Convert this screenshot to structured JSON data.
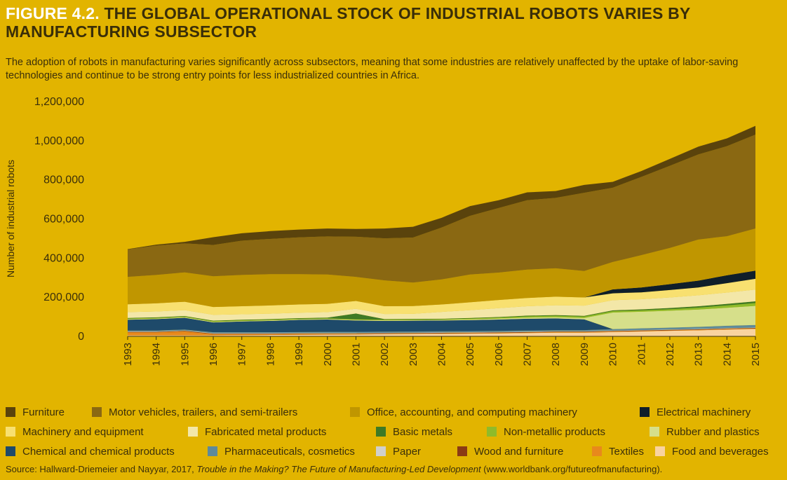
{
  "figure": {
    "number": "FIGURE 4.2.",
    "title": "THE GLOBAL OPERATIONAL STOCK OF INDUSTRIAL ROBOTS VARIES BY MANUFACTURING SUBSECTOR",
    "subtitle": "The adoption of robots in manufacturing varies significantly across subsectors, meaning that some industries are relatively unaffected by the uptake of labor-saving technologies and continue to be strong entry points for less industrialized countries in Africa."
  },
  "source": {
    "prefix": "Source: Hallward-Driemeier and Nayyar, 2017,",
    "title": "Trouble in the Making? The Future of Manufacturing-Led Development",
    "suffix": "(www.worldbank.org/futureofmanufacturing)."
  },
  "chart_data": {
    "type": "area",
    "stacked": true,
    "title": "THE GLOBAL OPERATIONAL STOCK OF INDUSTRIAL ROBOTS VARIES BY MANUFACTURING SUBSECTOR",
    "xlabel": "",
    "ylabel": "Number of industrial robots",
    "ylim": [
      0,
      1200000
    ],
    "yticks": [
      0,
      200000,
      400000,
      600000,
      800000,
      1000000,
      1200000
    ],
    "ytick_labels": [
      "0",
      "200,000",
      "400,000",
      "600,000",
      "800,000",
      "1,000,000",
      "1,200,000"
    ],
    "categories": [
      "1993",
      "1994",
      "1995",
      "1996",
      "1997",
      "1998",
      "1999",
      "2000",
      "2001",
      "2002",
      "2003",
      "2004",
      "2005",
      "2006",
      "2007",
      "2008",
      "2009",
      "2010",
      "2011",
      "2012",
      "2013",
      "2014",
      "2015"
    ],
    "series": [
      {
        "name": "Food and beverages",
        "color": "#f9d3a0",
        "values": [
          5000,
          5000,
          5000,
          5000,
          6000,
          7000,
          8000,
          9000,
          10000,
          11000,
          12000,
          13000,
          14000,
          15000,
          17000,
          19000,
          19000,
          22000,
          25000,
          28000,
          31000,
          35000,
          38000
        ]
      },
      {
        "name": "Textiles",
        "color": "#e8891c",
        "values": [
          15000,
          15000,
          20000,
          6000,
          5000,
          4000,
          4000,
          3000,
          2000,
          2000,
          2000,
          2000,
          2000,
          2000,
          2000,
          2000,
          2000,
          2000,
          2000,
          2000,
          2000,
          2000,
          2000
        ]
      },
      {
        "name": "Wood and furniture",
        "color": "#8b3a14",
        "values": [
          3000,
          3000,
          3000,
          3000,
          3000,
          3000,
          3000,
          3000,
          3000,
          3000,
          3000,
          3000,
          3000,
          3000,
          3000,
          3000,
          3000,
          3000,
          3000,
          3000,
          3000,
          3000,
          3000
        ]
      },
      {
        "name": "Paper",
        "color": "#d0d0cc",
        "values": [
          2000,
          2000,
          2000,
          2000,
          2000,
          2000,
          2000,
          2000,
          2000,
          2000,
          2000,
          2000,
          2000,
          2000,
          2000,
          2000,
          2000,
          2000,
          2000,
          2000,
          2000,
          2000,
          2000
        ]
      },
      {
        "name": "Pharmaceuticals, cosmetics",
        "color": "#5e8a9a",
        "values": [
          5000,
          5000,
          5000,
          5000,
          5000,
          5000,
          5000,
          6000,
          6000,
          6000,
          6000,
          6000,
          6000,
          6000,
          6000,
          6000,
          6000,
          8000,
          9000,
          10000,
          11000,
          12000,
          13000
        ]
      },
      {
        "name": "Chemical and chemical products",
        "color": "#1e4a6a",
        "values": [
          55000,
          58000,
          60000,
          50000,
          55000,
          58000,
          62000,
          63000,
          58000,
          55000,
          55000,
          55000,
          56000,
          58000,
          60000,
          60000,
          55000,
          0,
          0,
          0,
          0,
          0,
          0
        ]
      },
      {
        "name": "Rubber and plastics",
        "color": "#d6df8a",
        "values": [
          3000,
          3000,
          3000,
          3000,
          3000,
          3000,
          3000,
          3000,
          3000,
          3000,
          3000,
          3000,
          4000,
          5000,
          6000,
          6000,
          7000,
          85000,
          85000,
          86000,
          88000,
          92000,
          98000
        ]
      },
      {
        "name": "Non-metallic products",
        "color": "#8fbb2a",
        "values": [
          3000,
          3000,
          3000,
          3000,
          3000,
          3000,
          3000,
          3000,
          3000,
          3000,
          3000,
          3000,
          4000,
          5000,
          6000,
          7000,
          7000,
          7000,
          7000,
          8000,
          10000,
          12000,
          14000
        ]
      },
      {
        "name": "Basic metals",
        "color": "#3f7a25",
        "values": [
          3000,
          3000,
          3000,
          3000,
          3000,
          3000,
          3000,
          4000,
          30000,
          3000,
          3000,
          3000,
          3000,
          3000,
          4000,
          4000,
          4000,
          4000,
          5000,
          6000,
          7000,
          8000,
          9000
        ]
      },
      {
        "name": "Fabricated metal products",
        "color": "#f3e7a8",
        "values": [
          30000,
          30000,
          30000,
          30000,
          28000,
          28000,
          28000,
          28000,
          24000,
          26000,
          26000,
          35000,
          40000,
          45000,
          48000,
          50000,
          52000,
          52000,
          52000,
          54000,
          56000,
          58000,
          60000
        ]
      },
      {
        "name": "Machinery and equipment",
        "color": "#f8e070",
        "values": [
          40000,
          42000,
          43000,
          40000,
          41000,
          42000,
          42000,
          42000,
          40000,
          40000,
          40000,
          38000,
          40000,
          42000,
          42000,
          44000,
          42000,
          35000,
          35000,
          38000,
          40000,
          48000,
          55000
        ]
      },
      {
        "name": "Electrical machinery",
        "color": "#0f1e2a",
        "values": [
          0,
          0,
          0,
          0,
          0,
          0,
          0,
          0,
          0,
          0,
          0,
          0,
          0,
          0,
          0,
          0,
          0,
          20000,
          25000,
          30000,
          35000,
          40000,
          42000
        ]
      },
      {
        "name": "Office, accounting, and computing machinery",
        "color": "#c09600",
        "values": [
          140000,
          145000,
          150000,
          157000,
          160000,
          160000,
          155000,
          150000,
          123000,
          132000,
          120000,
          128000,
          142000,
          140000,
          145000,
          145000,
          135000,
          140000,
          165000,
          185000,
          210000,
          200000,
          215000
        ]
      },
      {
        "name": "Motor vehicles, trailers, and semi-trailers",
        "color": "#8a6812",
        "values": [
          140000,
          150000,
          148000,
          160000,
          175000,
          180000,
          188000,
          195000,
          205000,
          215000,
          230000,
          265000,
          300000,
          330000,
          355000,
          360000,
          400000,
          380000,
          400000,
          420000,
          435000,
          460000,
          480000
        ]
      },
      {
        "name": "Furniture",
        "color": "#5a430c",
        "values": [
          2000,
          5000,
          8000,
          40000,
          38000,
          40000,
          40000,
          40000,
          40000,
          50000,
          55000,
          50000,
          50000,
          40000,
          40000,
          35000,
          40000,
          30000,
          30000,
          35000,
          40000,
          40000,
          45000
        ]
      }
    ]
  }
}
